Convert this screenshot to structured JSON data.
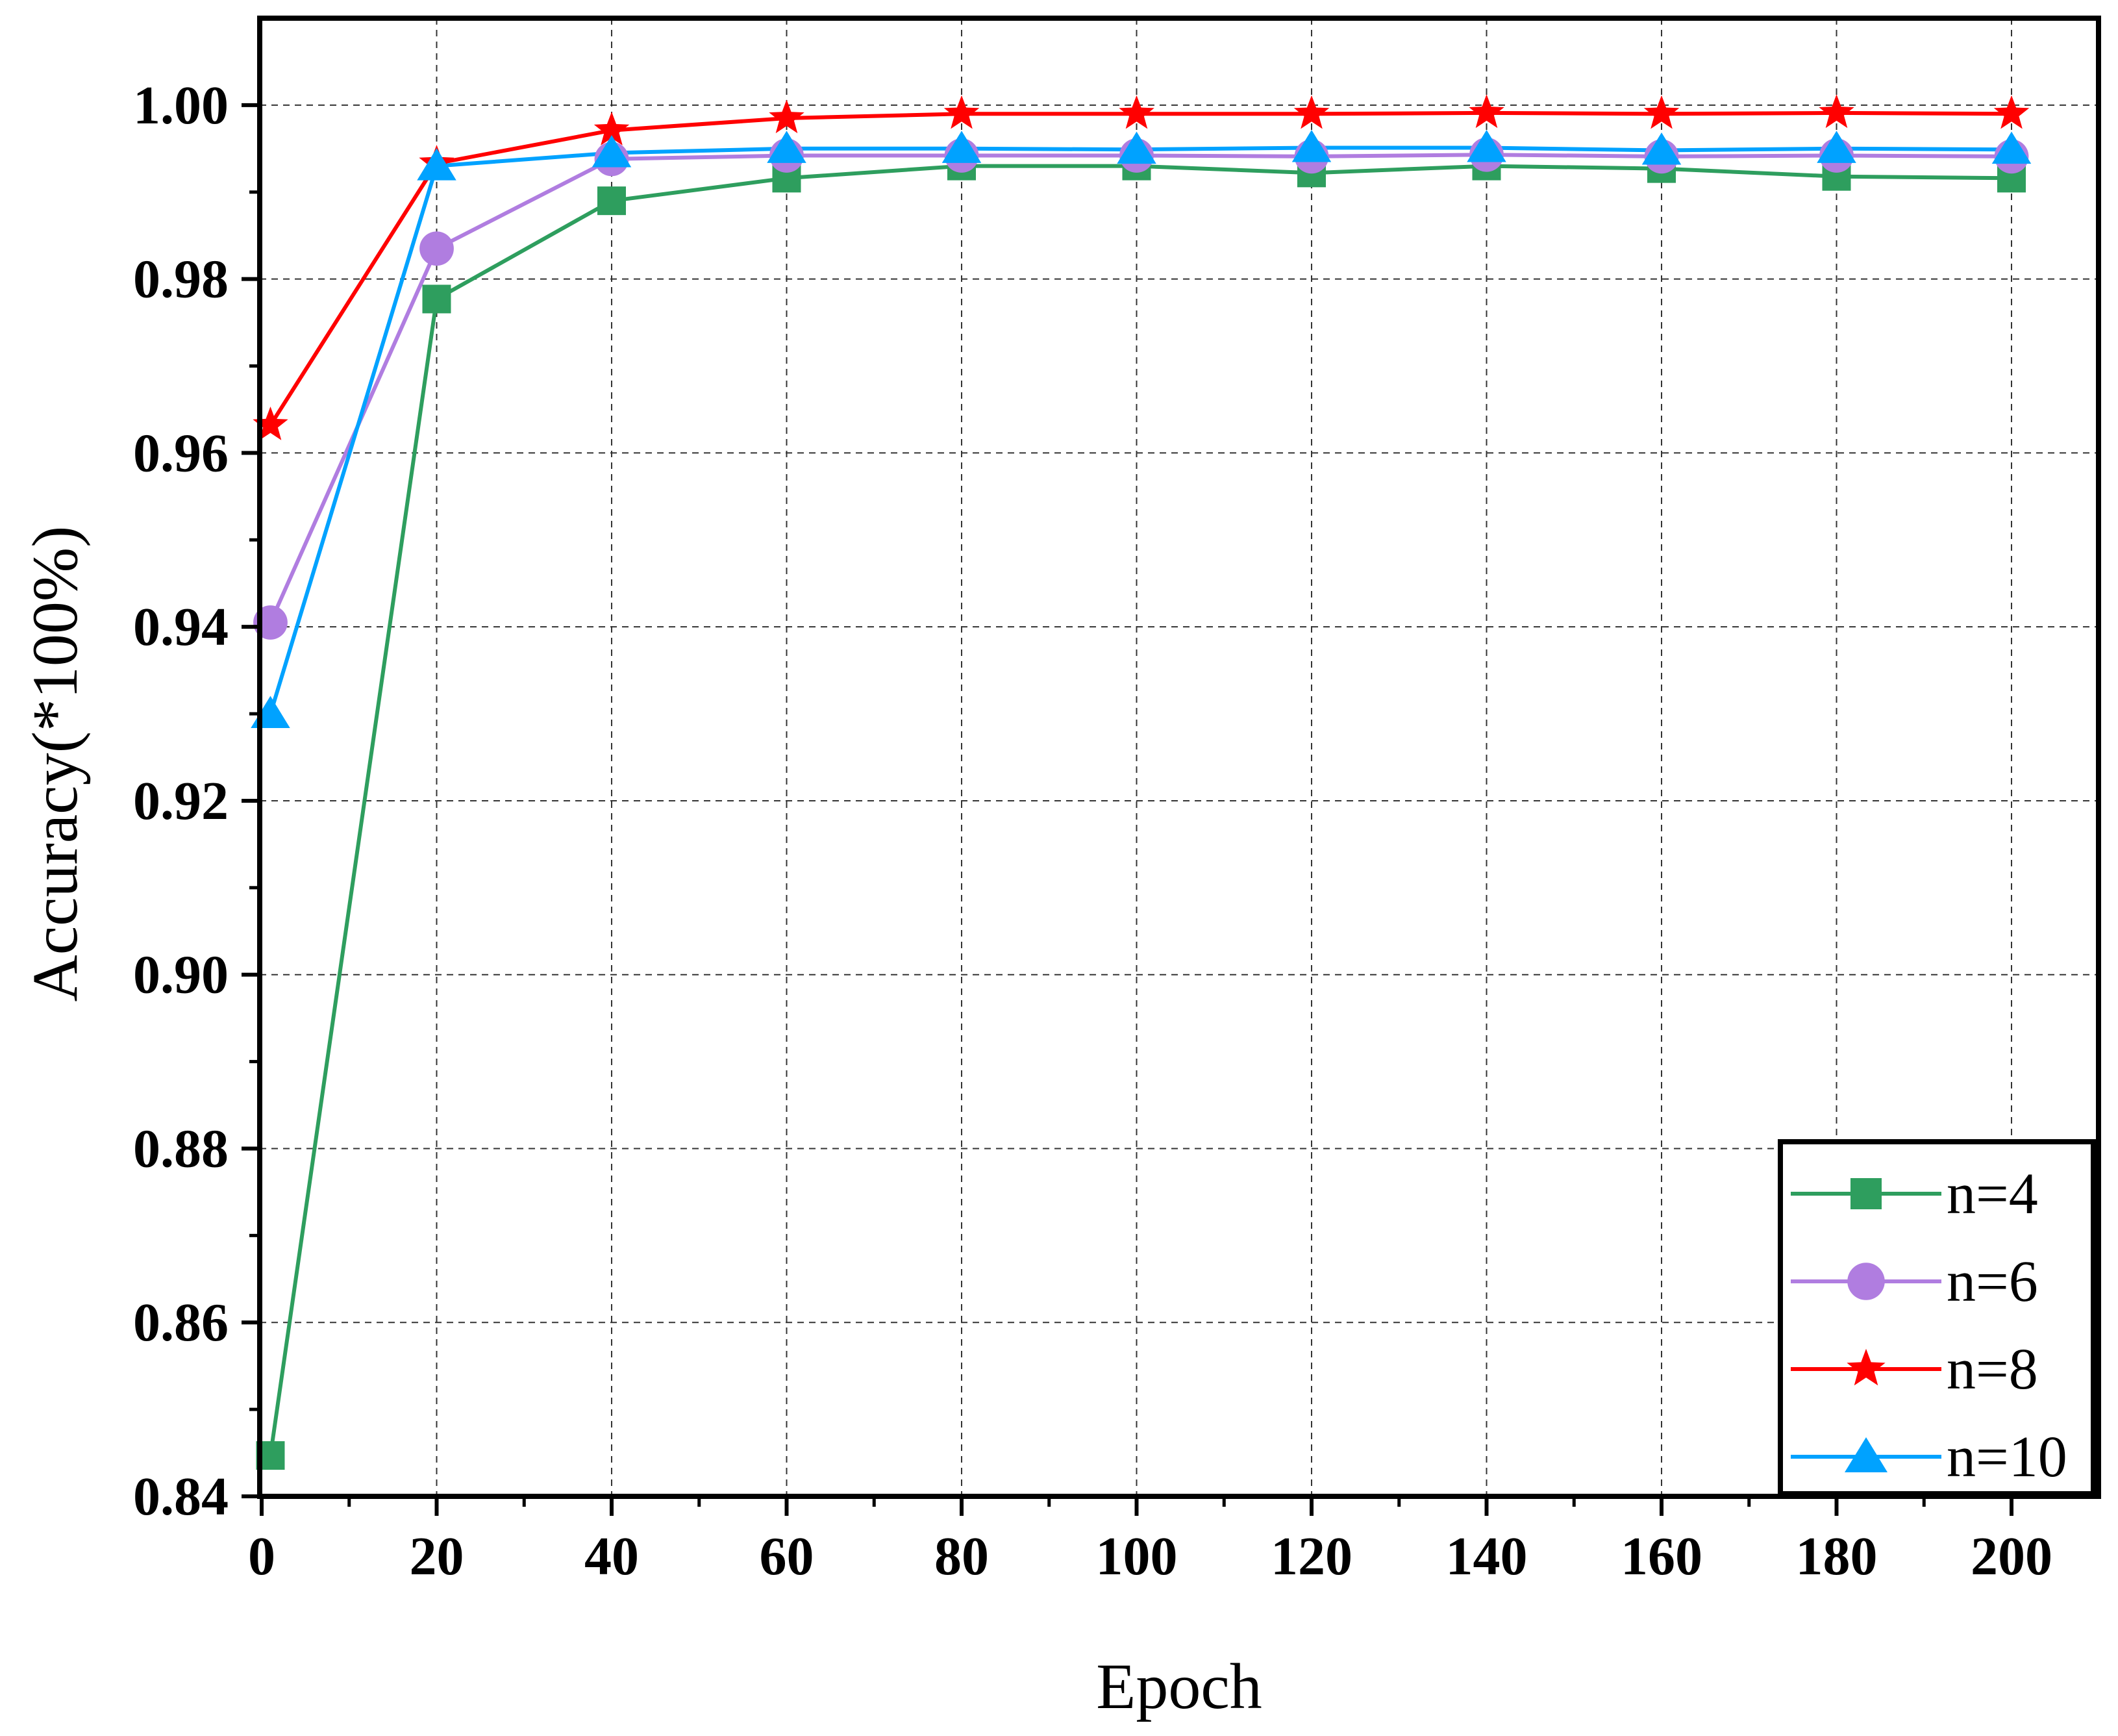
{
  "chart_data": {
    "type": "line",
    "title": "",
    "xlabel": "Epoch",
    "ylabel": "Accuracy(*100%)",
    "x": [
      1,
      20,
      40,
      60,
      80,
      100,
      120,
      140,
      160,
      180,
      200
    ],
    "xlim": [
      0,
      210
    ],
    "ylim": [
      0.84,
      1.01
    ],
    "xticks": [
      0,
      20,
      40,
      60,
      80,
      100,
      120,
      140,
      160,
      180,
      200
    ],
    "xtick_labels": [
      "0",
      "20",
      "40",
      "60",
      "80",
      "100",
      "120",
      "140",
      "160",
      "180",
      "200"
    ],
    "yticks": [
      0.84,
      0.86,
      0.88,
      0.9,
      0.92,
      0.94,
      0.96,
      0.98,
      1.0
    ],
    "ytick_labels": [
      "0.84",
      "0.86",
      "0.88",
      "0.90",
      "0.92",
      "0.94",
      "0.96",
      "0.98",
      "1.00"
    ],
    "grid": true,
    "legend_position": "bottom-right",
    "series": [
      {
        "name": "n=4",
        "color": "#2e9e5e",
        "marker": "square",
        "values": [
          0.8447,
          0.9777,
          0.989,
          0.9916,
          0.993,
          0.993,
          0.9922,
          0.993,
          0.9927,
          0.9918,
          0.9916
        ]
      },
      {
        "name": "n=6",
        "color": "#b07de0",
        "marker": "circle",
        "values": [
          0.9405,
          0.9835,
          0.9938,
          0.9942,
          0.9942,
          0.9942,
          0.9941,
          0.9943,
          0.9941,
          0.9942,
          0.9941
        ]
      },
      {
        "name": "n=8",
        "color": "#ff0000",
        "marker": "star",
        "values": [
          0.9632,
          0.9933,
          0.9971,
          0.9985,
          0.999,
          0.999,
          0.999,
          0.9991,
          0.999,
          0.9991,
          0.999
        ]
      },
      {
        "name": "n=10",
        "color": "#00a2ff",
        "marker": "triangle",
        "values": [
          0.93,
          0.993,
          0.9945,
          0.995,
          0.995,
          0.9949,
          0.9951,
          0.9951,
          0.9948,
          0.995,
          0.9949
        ]
      }
    ]
  }
}
